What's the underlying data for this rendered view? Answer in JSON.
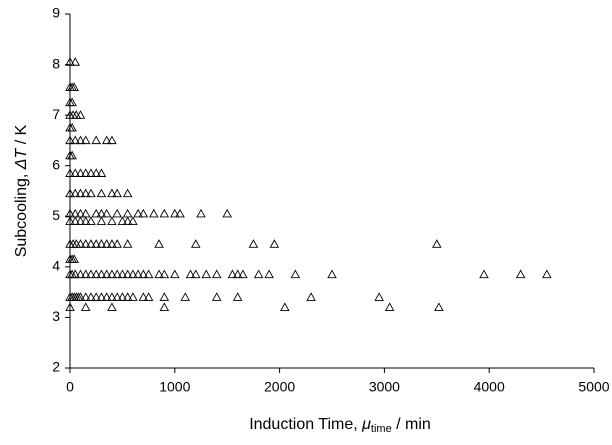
{
  "chart_data": {
    "type": "scatter",
    "x_label": {
      "prefix": "Induction Time, ",
      "symbol": "μ",
      "subscript": "time",
      "suffix": " / min"
    },
    "y_label": {
      "prefix": "Subcooling, ",
      "symbol": "ΔT",
      "suffix": " / K"
    },
    "x": [
      0,
      150,
      400,
      900,
      2050,
      3050,
      3520,
      0,
      20,
      40,
      60,
      80,
      100,
      150,
      200,
      250,
      300,
      350,
      400,
      450,
      500,
      550,
      600,
      700,
      750,
      900,
      1100,
      1400,
      1600,
      2300,
      2950,
      0,
      20,
      50,
      100,
      150,
      200,
      250,
      300,
      350,
      400,
      450,
      500,
      550,
      600,
      650,
      700,
      750,
      850,
      900,
      1000,
      1150,
      1200,
      1300,
      1400,
      1550,
      1600,
      1650,
      1800,
      1900,
      2150,
      2500,
      3950,
      4300,
      4550,
      0,
      20,
      40,
      0,
      30,
      60,
      100,
      150,
      200,
      250,
      300,
      350,
      400,
      450,
      550,
      850,
      1200,
      1750,
      1950,
      3500,
      0,
      50,
      100,
      150,
      200,
      300,
      400,
      500,
      550,
      600,
      0,
      50,
      100,
      150,
      250,
      300,
      350,
      450,
      550,
      650,
      700,
      800,
      900,
      1000,
      1050,
      1250,
      1500,
      0,
      50,
      100,
      150,
      200,
      300,
      400,
      450,
      550,
      0,
      50,
      100,
      150,
      200,
      250,
      300,
      0,
      20,
      0,
      50,
      100,
      150,
      250,
      350,
      400,
      0,
      20,
      0,
      30,
      60,
      100,
      0,
      20,
      0,
      20,
      40,
      0,
      50
    ],
    "y": [
      3.2,
      3.2,
      3.2,
      3.2,
      3.2,
      3.2,
      3.2,
      3.4,
      3.4,
      3.4,
      3.4,
      3.4,
      3.4,
      3.4,
      3.4,
      3.4,
      3.4,
      3.4,
      3.4,
      3.4,
      3.4,
      3.4,
      3.4,
      3.4,
      3.4,
      3.4,
      3.4,
      3.4,
      3.4,
      3.4,
      3.4,
      3.85,
      3.85,
      3.85,
      3.85,
      3.85,
      3.85,
      3.85,
      3.85,
      3.85,
      3.85,
      3.85,
      3.85,
      3.85,
      3.85,
      3.85,
      3.85,
      3.85,
      3.85,
      3.85,
      3.85,
      3.85,
      3.85,
      3.85,
      3.85,
      3.85,
      3.85,
      3.85,
      3.85,
      3.85,
      3.85,
      3.85,
      3.85,
      3.85,
      3.85,
      4.15,
      4.15,
      4.15,
      4.45,
      4.45,
      4.45,
      4.45,
      4.45,
      4.45,
      4.45,
      4.45,
      4.45,
      4.45,
      4.45,
      4.45,
      4.45,
      4.45,
      4.45,
      4.45,
      4.45,
      4.9,
      4.9,
      4.9,
      4.9,
      4.9,
      4.9,
      4.9,
      4.9,
      4.9,
      4.9,
      5.05,
      5.05,
      5.05,
      5.05,
      5.05,
      5.05,
      5.05,
      5.05,
      5.05,
      5.05,
      5.05,
      5.05,
      5.05,
      5.05,
      5.05,
      5.05,
      5.05,
      5.45,
      5.45,
      5.45,
      5.45,
      5.45,
      5.45,
      5.45,
      5.45,
      5.45,
      5.85,
      5.85,
      5.85,
      5.85,
      5.85,
      5.85,
      5.85,
      6.2,
      6.2,
      6.5,
      6.5,
      6.5,
      6.5,
      6.5,
      6.5,
      6.5,
      6.75,
      6.75,
      7.0,
      7.0,
      7.0,
      7.0,
      7.25,
      7.25,
      7.55,
      7.55,
      7.55,
      8.05,
      8.05
    ],
    "xlim": [
      0,
      5000
    ],
    "xticks": [
      0,
      1000,
      2000,
      3000,
      4000,
      5000
    ],
    "ylim": [
      2,
      9
    ],
    "yticks": [
      2,
      3,
      4,
      5,
      6,
      7,
      8,
      9
    ],
    "marker": "triangle-open",
    "color": "#000000",
    "grid": false
  }
}
